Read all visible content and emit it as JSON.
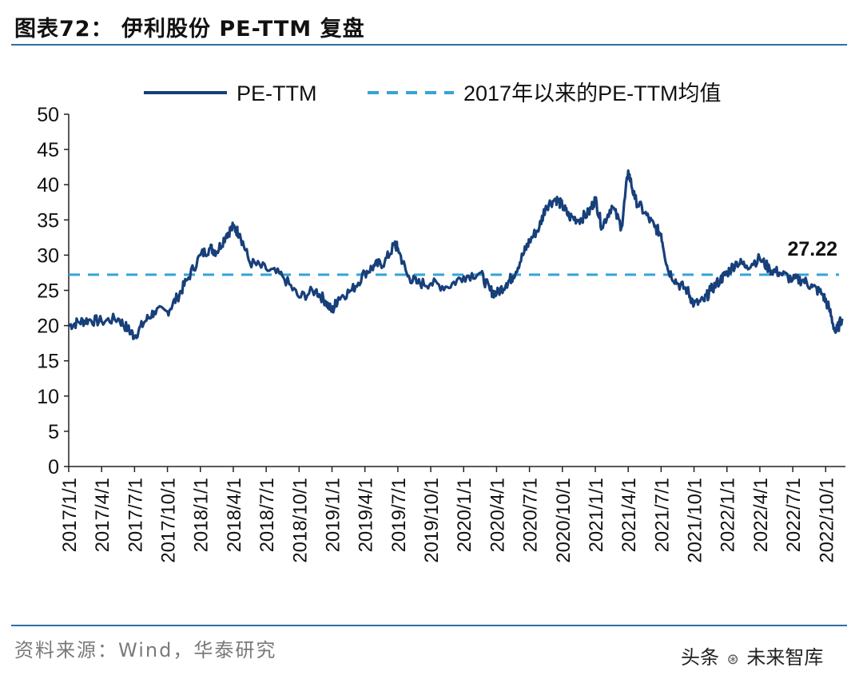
{
  "header": {
    "title": "图表72： 伊利股份 PE-TTM 复盘"
  },
  "footer": {
    "source": "资料来源：Wind，华泰研究",
    "watermark_prefix": "头条",
    "watermark_suffix": "未来智库"
  },
  "colors": {
    "line": "#173f7a",
    "mean_line": "#35a3d6",
    "rule": "#2e6fa7"
  },
  "chart_data": {
    "type": "line",
    "title": "",
    "xlabel": "",
    "ylabel": "",
    "ylim": [
      0,
      50
    ],
    "yticks": [
      "0",
      "5",
      "10",
      "15",
      "20",
      "25",
      "30",
      "35",
      "40",
      "45",
      "50"
    ],
    "xticks": [
      "2017/1/1",
      "2017/4/1",
      "2017/7/1",
      "2017/10/1",
      "2018/1/1",
      "2018/4/1",
      "2018/7/1",
      "2018/10/1",
      "2019/1/1",
      "2019/4/1",
      "2019/7/1",
      "2019/10/1",
      "2020/1/1",
      "2020/4/1",
      "2020/7/1",
      "2020/10/1",
      "2021/1/1",
      "2021/4/1",
      "2021/7/1",
      "2021/10/1",
      "2022/1/1",
      "2022/4/1",
      "2022/7/1",
      "2022/10/1"
    ],
    "legend": [
      "PE-TTM",
      "2017年以来的PE-TTM均值"
    ],
    "mean_value": 27.22,
    "mean_label": "27.22",
    "series": [
      {
        "name": "PE-TTM",
        "x": [
          0,
          0.3,
          0.6,
          1.0,
          1.5,
          1.8,
          2.0,
          2.3,
          2.6,
          3.0,
          3.3,
          3.6,
          4.0,
          4.3,
          4.5,
          4.8,
          5.0,
          5.2,
          5.5,
          6.0,
          6.5,
          7.0,
          7.5,
          7.8,
          8.0,
          8.2,
          8.6,
          9.0,
          9.3,
          9.6,
          9.9,
          10.0,
          10.3,
          10.6,
          11.0,
          11.5,
          12.0,
          12.5,
          12.8,
          13.0,
          13.3,
          13.5,
          13.8,
          14.0,
          14.3,
          14.5,
          14.8,
          15.0,
          15.2,
          15.5,
          15.8,
          16.0,
          16.2,
          16.5,
          16.8,
          17.0,
          17.2,
          17.5,
          17.8,
          18.0,
          18.2,
          18.5,
          18.8,
          19.0,
          19.3,
          19.5,
          19.8,
          20.0,
          20.3,
          20.6,
          21.0,
          21.3,
          21.6,
          22.0,
          22.3,
          22.6,
          22.9,
          23.1,
          23.3,
          23.5
        ],
        "values": [
          20.0,
          20.5,
          20.8,
          20.6,
          21.0,
          19.5,
          18.5,
          20.5,
          22.0,
          22.0,
          24.0,
          26.5,
          30.0,
          31.0,
          30.5,
          33.0,
          34.0,
          33.0,
          29.0,
          28.0,
          27.0,
          24.0,
          25.0,
          23.5,
          22.0,
          24.0,
          25.0,
          27.5,
          28.5,
          29.0,
          31.5,
          31.0,
          27.0,
          26.0,
          26.0,
          25.5,
          27.0,
          27.5,
          25.0,
          24.5,
          26.0,
          27.0,
          30.0,
          32.0,
          34.0,
          37.0,
          38.0,
          37.0,
          35.5,
          35.0,
          36.0,
          38.0,
          34.0,
          37.0,
          34.0,
          42.0,
          38.0,
          36.0,
          34.0,
          33.0,
          28.0,
          26.0,
          25.0,
          23.0,
          23.5,
          25.0,
          26.5,
          27.5,
          29.0,
          28.5,
          29.5,
          28.0,
          27.5,
          26.5,
          26.5,
          25.5,
          24.5,
          22.5,
          19.0,
          21.0
        ]
      }
    ]
  }
}
